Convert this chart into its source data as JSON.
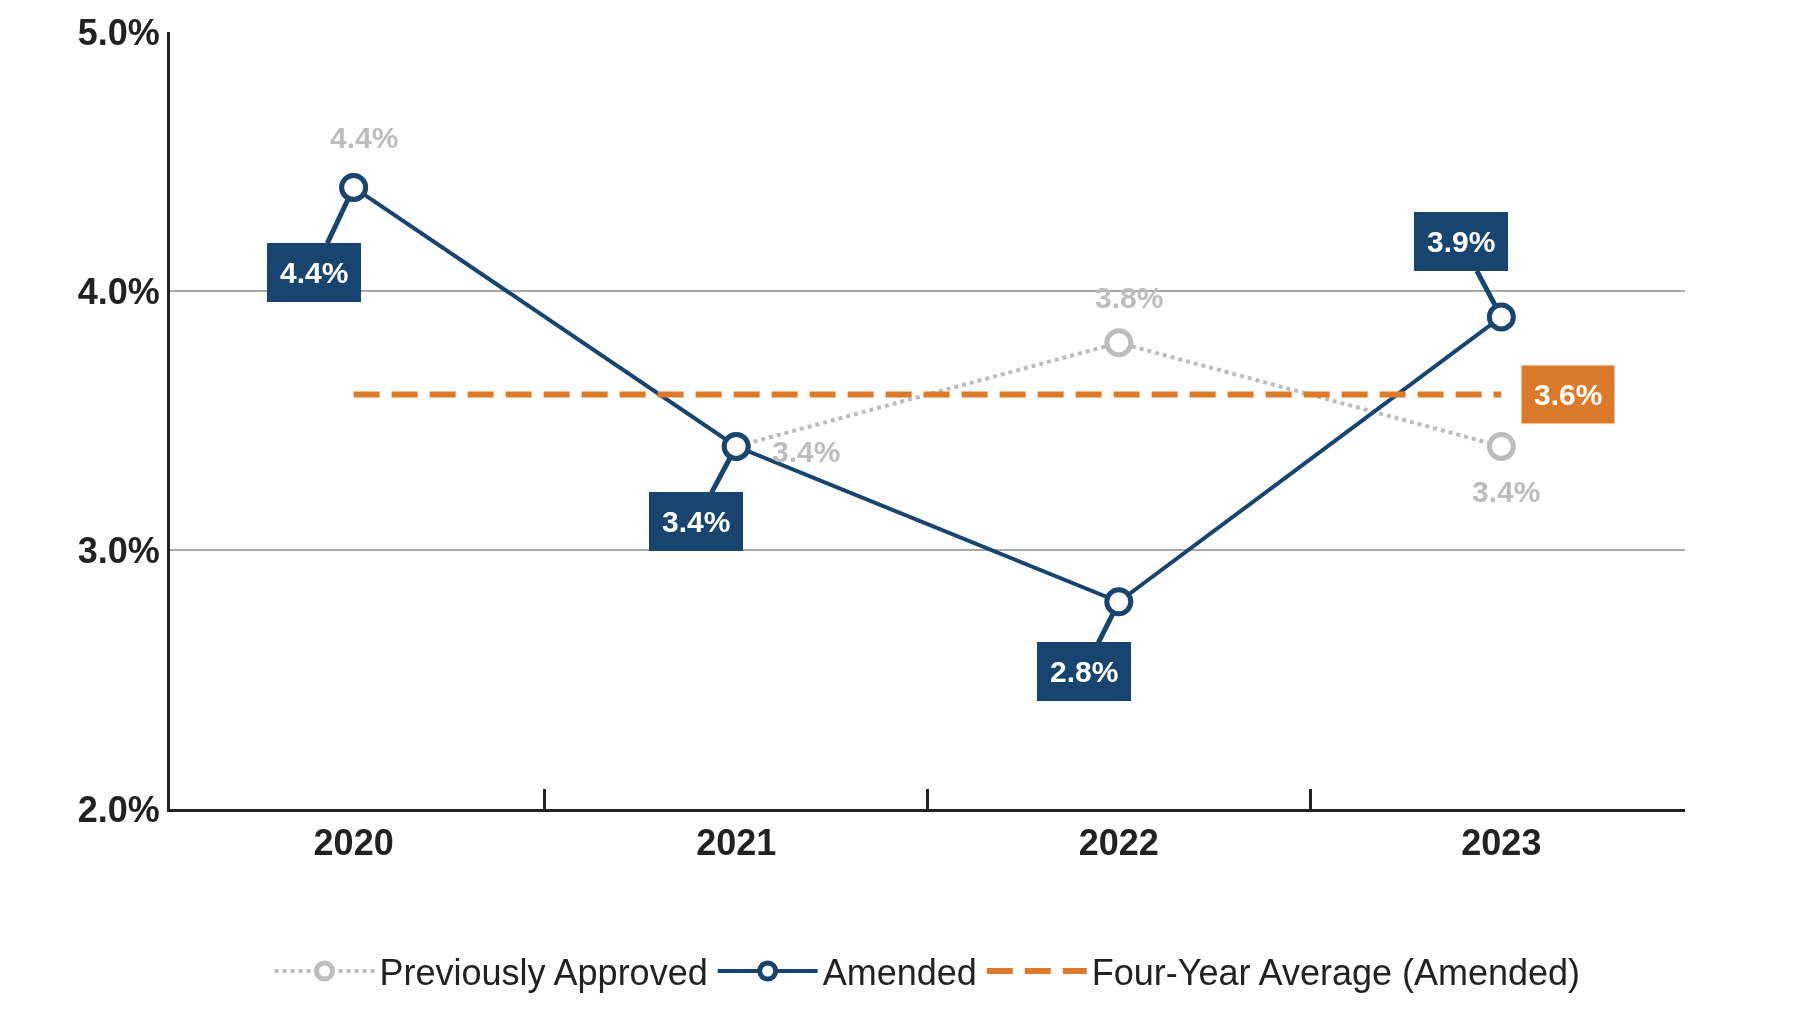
{
  "chart_data": {
    "type": "line",
    "categories": [
      "2020",
      "2021",
      "2022",
      "2023"
    ],
    "series": [
      {
        "name": "Previously Approved",
        "color": "#bdbdbd",
        "values": [
          4.4,
          3.4,
          3.8,
          3.4
        ],
        "value_labels": [
          "4.4%",
          "3.4%",
          "3.8%",
          "3.4%"
        ],
        "line_style": "dotted"
      },
      {
        "name": "Amended",
        "color": "#17456f",
        "values": [
          4.4,
          3.4,
          2.8,
          3.9
        ],
        "value_labels": [
          "4.4%",
          "3.4%",
          "2.8%",
          "3.9%"
        ],
        "line_style": "solid"
      },
      {
        "name": "Four-Year Average (Amended)",
        "color": "#dc7a2a",
        "values": [
          3.6,
          3.6,
          3.6,
          3.6
        ],
        "value_labels": [
          null,
          null,
          null,
          "3.6%"
        ],
        "line_style": "dashed",
        "marker": "none"
      }
    ],
    "ylim": [
      2.0,
      5.0
    ],
    "yticks": [
      {
        "value": 2.0,
        "label": "2.0%"
      },
      {
        "value": 3.0,
        "label": "3.0%"
      },
      {
        "value": 4.0,
        "label": "4.0%"
      },
      {
        "value": 5.0,
        "label": "5.0%"
      }
    ],
    "grid": "y",
    "legend": "bottom",
    "marker": "circle"
  }
}
